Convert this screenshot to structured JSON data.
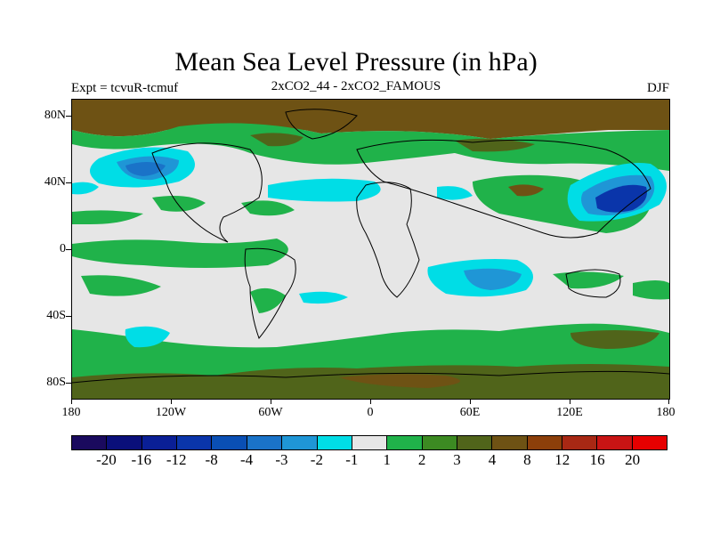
{
  "title": "Mean Sea Level Pressure (in hPa)",
  "subtitle_left": "Expt = tcvuR-tcmuf",
  "subtitle_center": "2xCO2_44 - 2xCO2_FAMOUS",
  "subtitle_right": "DJF",
  "lat_labels": [
    "80N",
    "40N",
    "0",
    "40S",
    "80S"
  ],
  "lon_labels": [
    "180",
    "120W",
    "60W",
    "0",
    "60E",
    "120E",
    "180"
  ],
  "colorbar": {
    "colors": [
      "#1a0a5e",
      "#0a0f7a",
      "#0a1f96",
      "#0a35aa",
      "#0a4fb4",
      "#1a73c8",
      "#1f96d6",
      "#00dde6",
      "#e6e6e6",
      "#20b24a",
      "#3c8a22",
      "#50641a",
      "#6e5214",
      "#8c3f0a",
      "#a82814",
      "#c81414",
      "#e60000"
    ],
    "labels": [
      "-20",
      "-16",
      "-12",
      "-8",
      "-4",
      "-3",
      "-2",
      "-1",
      "1",
      "2",
      "3",
      "4",
      "8",
      "12",
      "16",
      "20"
    ]
  },
  "map": {
    "background": "#e6e6e6",
    "colors": {
      "brown_dark": "#6e5214",
      "olive": "#50641a",
      "green": "#20b24a",
      "cyan": "#00dde6",
      "blue_light": "#1f96d6",
      "blue": "#1a73c8",
      "blue_dark": "#0a35aa"
    }
  }
}
